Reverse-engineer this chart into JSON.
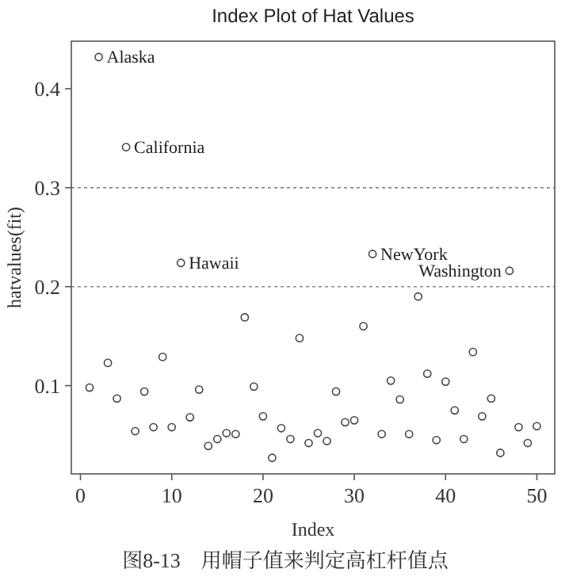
{
  "chart_data": {
    "type": "scatter",
    "title": "Index Plot of Hat Values",
    "xlabel": "Index",
    "ylabel": "hatvalues(fit)",
    "x": [
      1,
      2,
      3,
      4,
      5,
      6,
      7,
      8,
      9,
      10,
      11,
      12,
      13,
      14,
      15,
      16,
      17,
      18,
      19,
      20,
      21,
      22,
      23,
      24,
      25,
      26,
      27,
      28,
      29,
      30,
      31,
      32,
      33,
      34,
      35,
      36,
      37,
      38,
      39,
      40,
      41,
      42,
      43,
      44,
      45,
      46,
      47,
      48,
      49,
      50
    ],
    "series": [
      {
        "color": "#444444",
        "values": [
          0.098,
          0.432,
          0.123,
          0.087,
          0.341,
          0.054,
          0.094,
          0.058,
          0.129,
          0.058,
          0.224,
          0.068,
          0.096,
          0.039,
          0.046,
          0.052,
          0.051,
          0.169,
          0.099,
          0.069,
          0.027,
          0.057,
          0.046,
          0.148,
          0.042,
          0.052,
          0.044,
          0.094,
          0.063,
          0.065,
          0.16,
          0.233,
          0.051,
          0.105,
          0.086,
          0.051,
          0.19,
          0.112,
          0.045,
          0.104,
          0.075,
          0.046,
          0.134,
          0.069,
          0.087,
          0.032,
          0.216,
          0.058,
          0.042,
          0.059
        ]
      }
    ],
    "marker": "circle",
    "xlim": [
      -1,
      51.96
    ],
    "ylim": [
      0.0108,
      0.448
    ],
    "xticks": [
      0,
      10,
      20,
      30,
      40,
      50
    ],
    "yticks": [
      0.1,
      0.2,
      0.3,
      0.4
    ],
    "ref_lines": [
      {
        "axis": "y",
        "value": 0.2,
        "color": "#888888",
        "line_style": "dotted"
      },
      {
        "axis": "y",
        "value": 0.3,
        "color": "#888888",
        "line_style": "dotted"
      }
    ],
    "annotations": [
      {
        "text": "Alaska",
        "x": 2,
        "y": 0.432
      },
      {
        "text": "California",
        "x": 5,
        "y": 0.341
      },
      {
        "text": "Hawaii",
        "x": 11,
        "y": 0.224
      },
      {
        "text": "NewYork",
        "x": 32,
        "y": 0.233
      },
      {
        "text": "Washington",
        "x": 47,
        "y": 0.216
      },
      "图8-13　用帽子值来判定高杠杆值点"
    ]
  }
}
